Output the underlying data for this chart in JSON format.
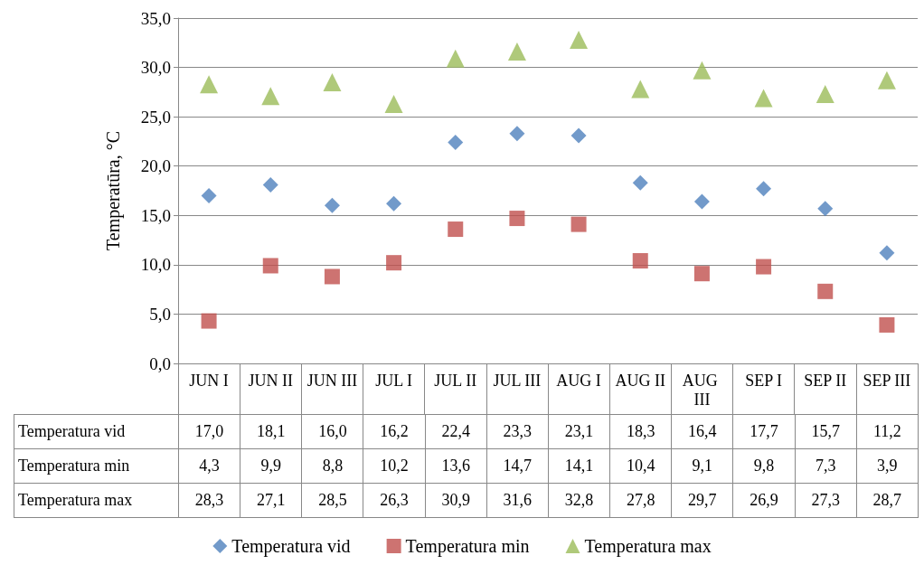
{
  "chart_data": {
    "type": "scatter",
    "ylabel": "Temperatūra, °C",
    "categories": [
      "JUN I",
      "JUN II",
      "JUN III",
      "JUL I",
      "JUL II",
      "JUL III",
      "AUG I",
      "AUG II",
      "AUG III",
      "SEP I",
      "SEP II",
      "SEP III"
    ],
    "series": [
      {
        "name": "Temperatura vid",
        "color": "#4f81bd",
        "marker": "diamond",
        "values": [
          17.0,
          18.1,
          16.0,
          16.2,
          22.4,
          23.3,
          23.1,
          18.3,
          16.4,
          17.7,
          15.7,
          11.2
        ],
        "value_labels": [
          "17,0",
          "18,1",
          "16,0",
          "16,2",
          "22,4",
          "23,3",
          "23,1",
          "18,3",
          "16,4",
          "17,7",
          "15,7",
          "11,2"
        ]
      },
      {
        "name": "Temperatura min",
        "color": "#c0504d",
        "marker": "square",
        "values": [
          4.3,
          9.9,
          8.8,
          10.2,
          13.6,
          14.7,
          14.1,
          10.4,
          9.1,
          9.8,
          7.3,
          3.9
        ],
        "value_labels": [
          "4,3",
          "9,9",
          "8,8",
          "10,2",
          "13,6",
          "14,7",
          "14,1",
          "10,4",
          "9,1",
          "9,8",
          "7,3",
          "3,9"
        ]
      },
      {
        "name": "Temperatura max",
        "color": "#9bbb59",
        "marker": "triangle",
        "values": [
          28.3,
          27.1,
          28.5,
          26.3,
          30.9,
          31.6,
          32.8,
          27.8,
          29.7,
          26.9,
          27.3,
          28.7
        ],
        "value_labels": [
          "28,3",
          "27,1",
          "28,5",
          "26,3",
          "30,9",
          "31,6",
          "32,8",
          "27,8",
          "29,7",
          "26,9",
          "27,3",
          "28,7"
        ]
      }
    ],
    "ylim": [
      0,
      35
    ],
    "yticks": [
      {
        "value": 0,
        "label": "0,0"
      },
      {
        "value": 5,
        "label": "5,0"
      },
      {
        "value": 10,
        "label": "10,0"
      },
      {
        "value": 15,
        "label": "15,0"
      },
      {
        "value": 20,
        "label": "20,0"
      },
      {
        "value": 25,
        "label": "25,0"
      },
      {
        "value": 30,
        "label": "30,0"
      },
      {
        "value": 35,
        "label": "35,0"
      }
    ],
    "grid": "y",
    "legend": "bottom"
  }
}
